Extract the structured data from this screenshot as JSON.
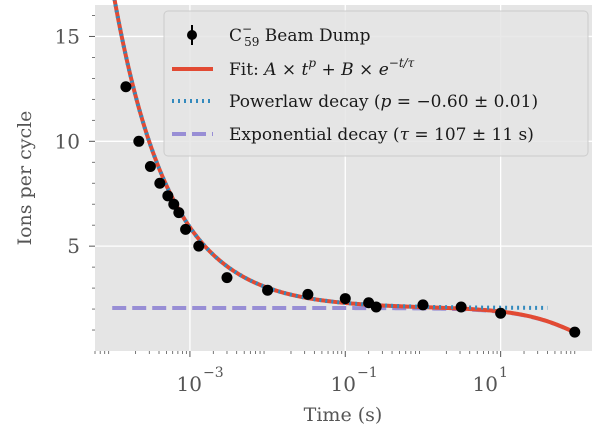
{
  "chart_data": {
    "type": "scatter",
    "xlabel": "Time (s)",
    "ylabel": "Ions per cycle",
    "x_scale": "log",
    "xlim": [
      6e-05,
      150
    ],
    "ylim": [
      0,
      16.5
    ],
    "x_ticks": [
      {
        "value": 0.001,
        "base": "10",
        "exp": "−3"
      },
      {
        "value": 0.1,
        "base": "10",
        "exp": "−1"
      },
      {
        "value": 10,
        "base": "10",
        "exp": "1"
      }
    ],
    "y_ticks": [
      5,
      10,
      15
    ],
    "y_tick_labels": [
      "5",
      "10",
      "15"
    ],
    "grid": true,
    "background": "#e5e5e5",
    "legend_position": "top-right",
    "series": [
      {
        "name": "C₅₉⁻ Beam Dump",
        "kind": "points",
        "color": "#000000",
        "x": [
          0.00015,
          0.00022,
          0.00031,
          0.00041,
          0.00052,
          0.00062,
          0.00072,
          0.00088,
          0.0013,
          0.003,
          0.01,
          0.033,
          0.1,
          0.2,
          0.25,
          1,
          3.1,
          10,
          90
        ],
        "y": [
          12.6,
          10.0,
          8.8,
          8.0,
          7.4,
          7.0,
          6.6,
          5.8,
          5.0,
          3.5,
          2.9,
          2.7,
          2.5,
          2.3,
          2.1,
          2.2,
          2.1,
          1.8,
          0.9
        ]
      },
      {
        "name": "Fit: A × t^p + B × e^(−t/τ)",
        "kind": "fit",
        "color": "#e24a33",
        "A": 0.061,
        "p": -0.6,
        "B": 2.05,
        "tau": 107
      },
      {
        "name": "Powerlaw decay (p = −0.60 ± 0.01)",
        "kind": "powerlaw",
        "color": "#348abd",
        "p": -0.6,
        "p_err": 0.01
      },
      {
        "name": "Exponential decay (τ = 107 ± 11 s)",
        "kind": "exponential",
        "color": "#988ed5",
        "tau": 107,
        "tau_err": 11
      }
    ],
    "legend": {
      "data_label": {
        "main": "C",
        "sub": "59",
        "sup": "−",
        "rest": " Beam Dump"
      },
      "fit_label": {
        "prefix": "Fit: ",
        "A": "A",
        "times1": " × ",
        "t": "t",
        "p": "p",
        "plus": " + ",
        "B": "B",
        "times2": " × ",
        "e": "e",
        "exp": "−t/τ"
      },
      "powerlaw_label": {
        "text": "Powerlaw decay (",
        "p": "p",
        "rest": " = −0.60 ± 0.01)"
      },
      "exponential_label": {
        "text": "Exponential decay (",
        "tau": "τ",
        "rest": " = 107 ± 11 s)"
      }
    }
  }
}
